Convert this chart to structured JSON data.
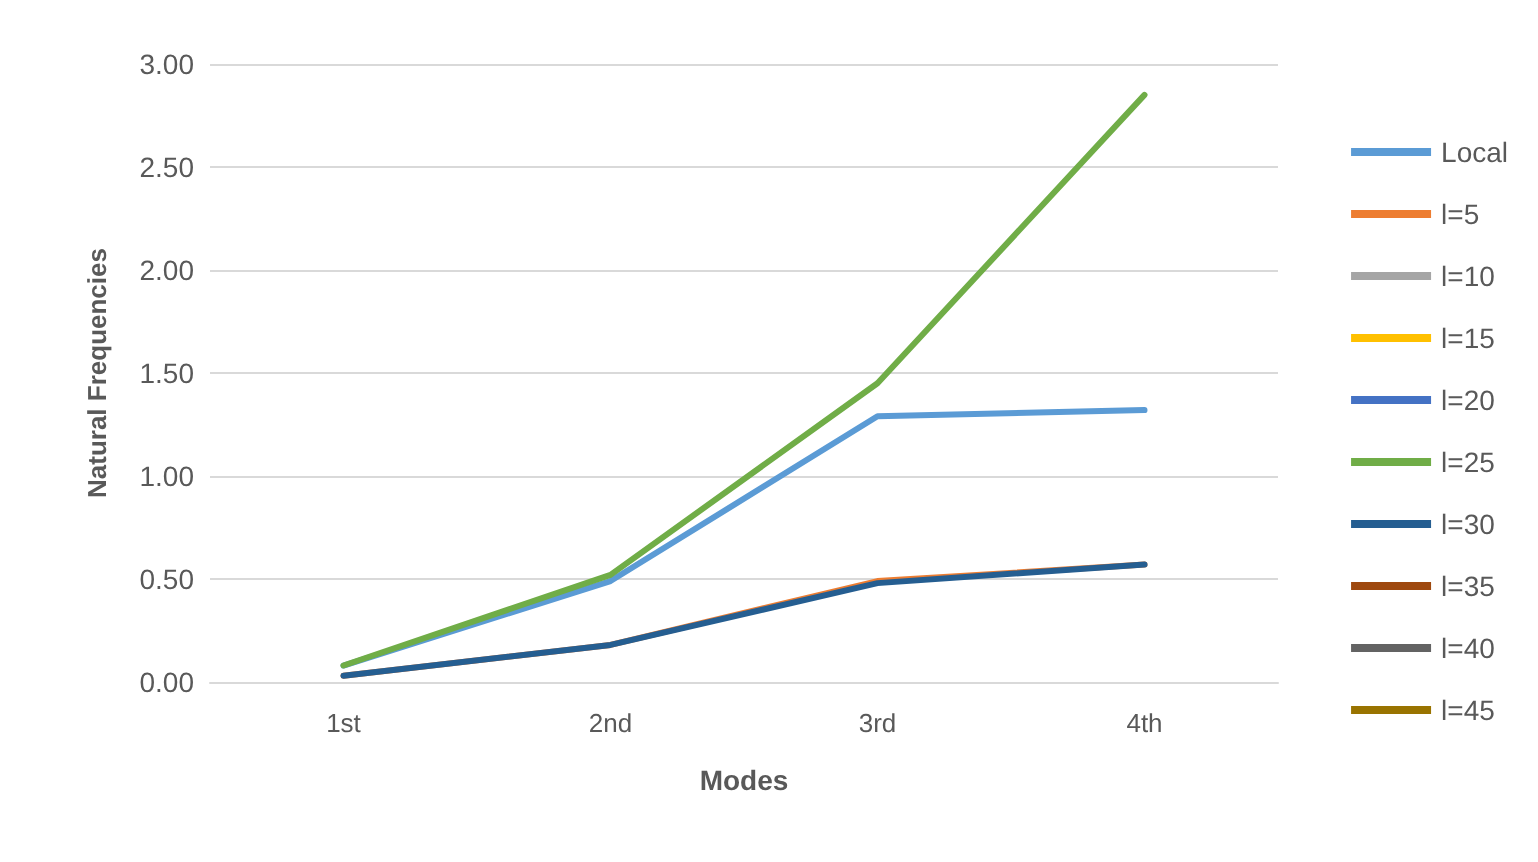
{
  "chart_data": {
    "type": "line",
    "xlabel": "Modes",
    "ylabel": "Natural Frequencies",
    "categories": [
      "1st",
      "2nd",
      "3rd",
      "4th"
    ],
    "ylim": [
      0,
      3
    ],
    "yticks": [
      {
        "value": 0,
        "label": "0.00"
      },
      {
        "value": 0.5,
        "label": "0.50"
      },
      {
        "value": 1,
        "label": "1.00"
      },
      {
        "value": 1.5,
        "label": "1.50"
      },
      {
        "value": 2,
        "label": "2.00"
      },
      {
        "value": 2.5,
        "label": "2.50"
      },
      {
        "value": 3,
        "label": "3.00"
      }
    ],
    "grid": "y",
    "legend": "right",
    "marker": "none",
    "line_style": "solid",
    "series": [
      {
        "name": "Local",
        "color": "#5b9bd5",
        "values": [
          0.08,
          0.49,
          1.29,
          1.32
        ]
      },
      {
        "name": "l=5",
        "color": "#ed7d31",
        "values": [
          0.03,
          0.18,
          0.49,
          0.57
        ]
      },
      {
        "name": "l=10",
        "color": "#a5a5a5",
        "values": [
          null,
          null,
          null,
          null
        ]
      },
      {
        "name": "l=15",
        "color": "#ffc000",
        "values": [
          null,
          null,
          null,
          null
        ]
      },
      {
        "name": "l=20",
        "color": "#4472c4",
        "values": [
          null,
          null,
          null,
          null
        ]
      },
      {
        "name": "l=25",
        "color": "#70ad47",
        "values": [
          0.08,
          0.52,
          1.45,
          2.85
        ]
      },
      {
        "name": "l=30",
        "color": "#255e91",
        "values": [
          0.03,
          0.18,
          0.48,
          0.57
        ]
      },
      {
        "name": "l=35",
        "color": "#9e480e",
        "values": [
          null,
          null,
          null,
          null
        ]
      },
      {
        "name": "l=40",
        "color": "#636363",
        "values": [
          null,
          null,
          null,
          null
        ]
      },
      {
        "name": "l=45",
        "color": "#997300",
        "values": [
          null,
          null,
          null,
          null
        ]
      }
    ]
  }
}
